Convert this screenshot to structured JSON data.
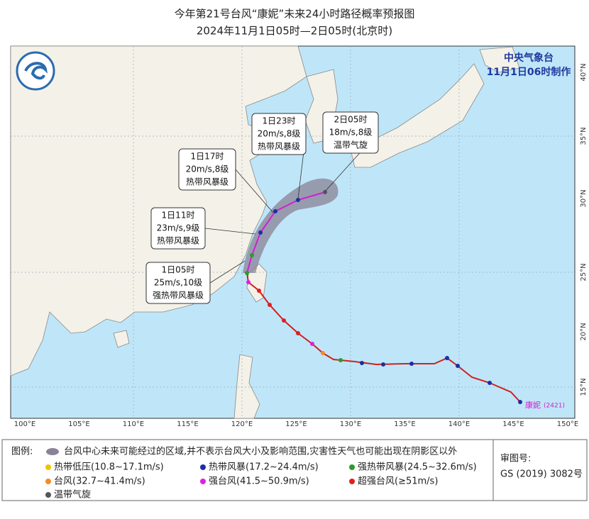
{
  "title": "今年第21号台风“康妮”未来24小时路径概率预报图",
  "subtitle": "2024年11月1日05时—2日05时(北京时)",
  "agency": "中央气象台",
  "issued": "11月1日06时制作",
  "typhoon_label": {
    "name": "康妮",
    "code": "(2421)"
  },
  "callouts": [
    {
      "time": "1日05时",
      "wind": "25m/s,10级",
      "level": "强热带风暴级"
    },
    {
      "time": "1日11时",
      "wind": "23m/s,9级",
      "level": "热带风暴级"
    },
    {
      "time": "1日17时",
      "wind": "20m/s,8级",
      "level": "热带风暴级"
    },
    {
      "time": "1日23时",
      "wind": "20m/s,8级",
      "level": "热带风暴级"
    },
    {
      "time": "2日05时",
      "wind": "18m/s,8级",
      "level": "温带气旋"
    }
  ],
  "lon_labels": [
    "100°E",
    "105°E",
    "110°E",
    "115°E",
    "120°E",
    "125°E",
    "130°E",
    "135°E",
    "140°E",
    "145°E",
    "150°E"
  ],
  "lat_labels": [
    "40°N",
    "35°N",
    "30°N",
    "25°N",
    "20°N",
    "15°N"
  ],
  "legend": {
    "title": "图例:",
    "cone_note": "台风中心未来可能经过的区域,并不表示台风大小及影响范围,灾害性天气也可能出现在阴影区以外",
    "items": [
      {
        "label": "热带低压(10.8~17.1m/s)",
        "color": "#f2c200"
      },
      {
        "label": "热带风暴(17.2~24.4m/s)",
        "color": "#1a2fa8"
      },
      {
        "label": "强热带风暴(24.5~32.6m/s)",
        "color": "#2c9a2c"
      },
      {
        "label": "台风(32.7~41.4m/s)",
        "color": "#f28c28"
      },
      {
        "label": "强台风(41.5~50.9m/s)",
        "color": "#e020e0"
      },
      {
        "label": "超强台风(≥51m/s)",
        "color": "#e02020"
      },
      {
        "label": "温带气旋",
        "color": "#555555"
      }
    ]
  },
  "review": {
    "label": "审图号:",
    "number": "GS (2019) 3082号"
  }
}
